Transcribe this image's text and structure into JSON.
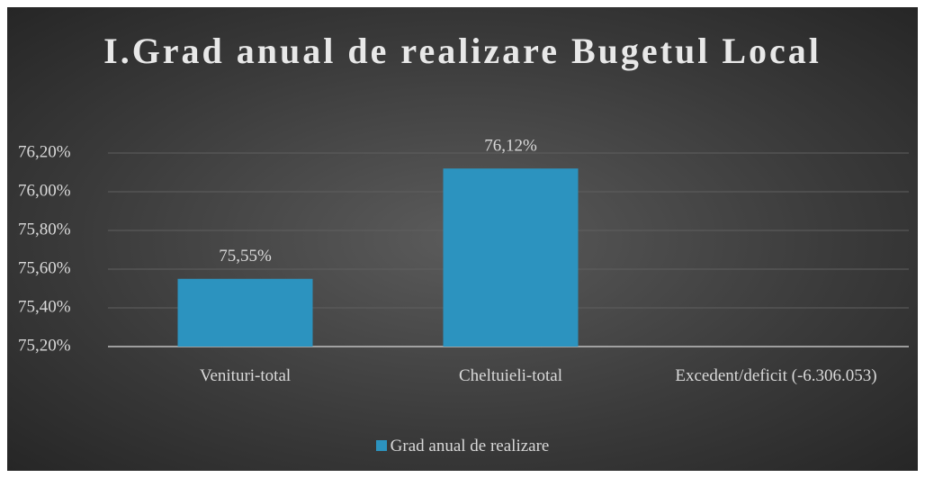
{
  "chart_data": {
    "type": "bar",
    "title": "I.Grad anual de realizare Bugetul Local",
    "categories": [
      "Venituri-total",
      "Cheltuieli-total",
      "Excedent/deficit (-6.306.053)"
    ],
    "series": [
      {
        "name": "Grad anual de realizare",
        "color": "#2c93bf",
        "values": [
          75.55,
          76.12,
          null
        ],
        "value_labels": [
          "75,55%",
          "76,12%",
          null
        ]
      }
    ],
    "ylim": [
      75.2,
      76.2
    ],
    "yticks": [
      {
        "value": 75.2,
        "label": "75,20%"
      },
      {
        "value": 75.4,
        "label": "75,40%"
      },
      {
        "value": 75.6,
        "label": "75,60%"
      },
      {
        "value": 75.8,
        "label": "75,80%"
      },
      {
        "value": 76.0,
        "label": "76,00%"
      },
      {
        "value": 76.2,
        "label": "76,20%"
      }
    ],
    "grid": true,
    "legend": "bottom"
  }
}
